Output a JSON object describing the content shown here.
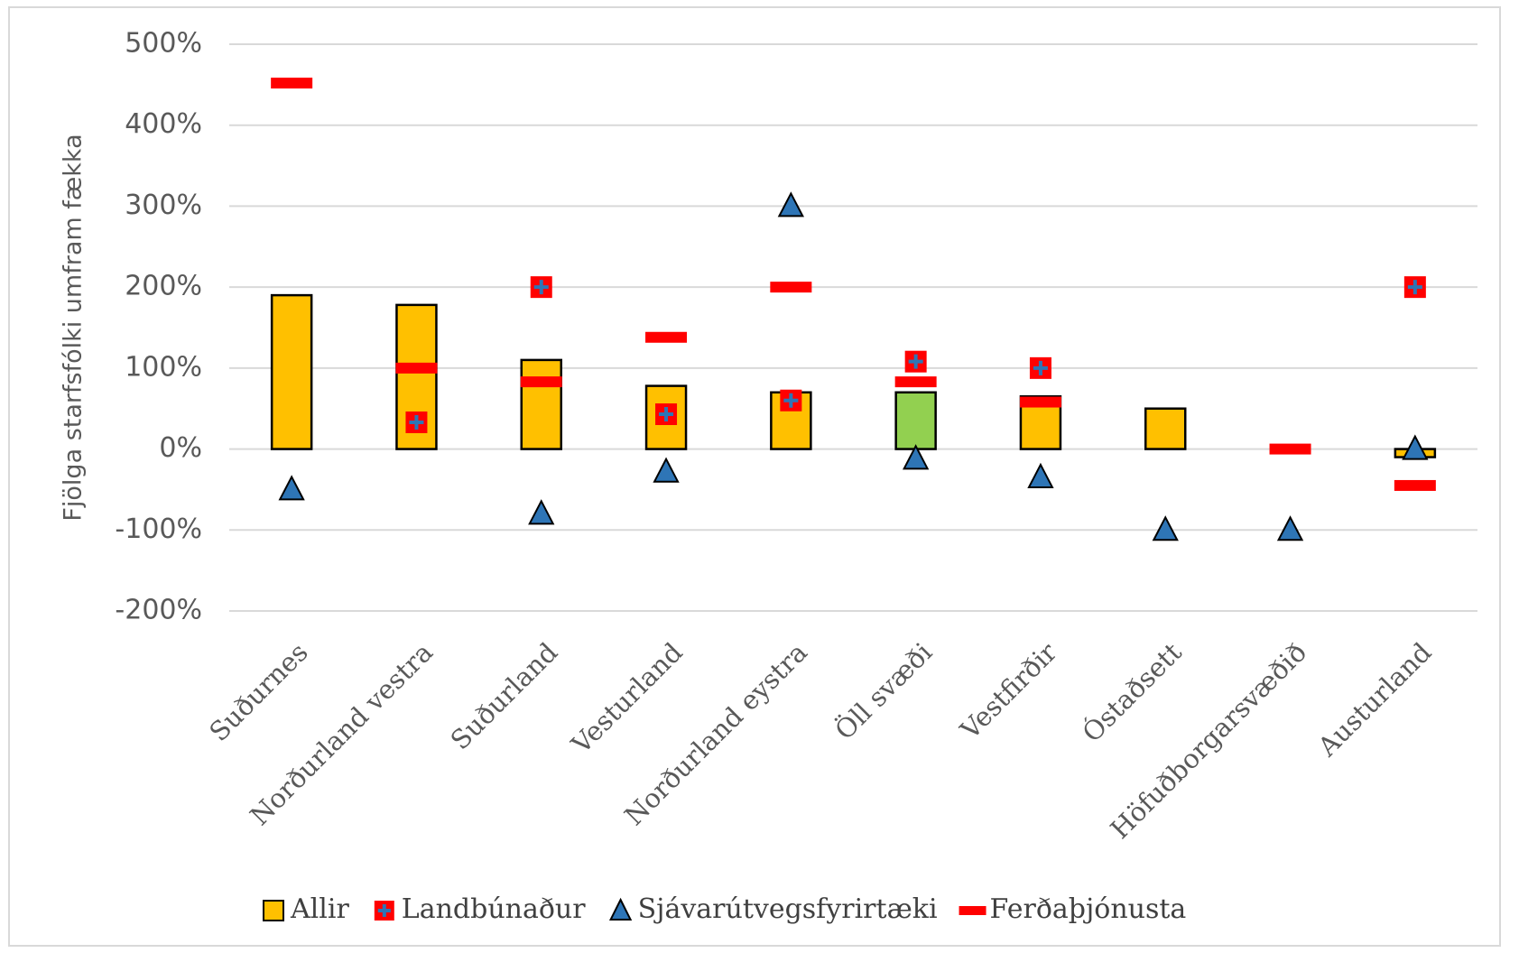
{
  "chart_data": {
    "type": "combo",
    "y_label": "Fjölga starfsfólki umfram fækka",
    "categories": [
      "Suðurnes",
      "Norðurland vestra",
      "Suðurland",
      "Vesturland",
      "Norðurland eystra",
      "Öll svæði",
      "Vestfirðir",
      "Óstaðsett",
      "Höfuðborgarsvæðið",
      "Austurland"
    ],
    "series": [
      {
        "name": "Allir",
        "mark": "bar",
        "color": "#ffc000",
        "colors": [
          "#ffc000",
          "#ffc000",
          "#ffc000",
          "#ffc000",
          "#ffc000",
          "#92d050",
          "#ffc000",
          "#ffc000",
          "#ffc000",
          "#ffc000"
        ],
        "values": [
          190,
          178,
          110,
          78,
          70,
          70,
          65,
          50,
          null,
          -10
        ]
      },
      {
        "name": "Landbúnaður",
        "mark": "cross",
        "color": "#ff0000",
        "values": [
          null,
          33,
          200,
          43,
          60,
          108,
          100,
          null,
          null,
          200
        ]
      },
      {
        "name": "Sjávarútvegsfyrirtæki",
        "mark": "triangle",
        "color": "#2e75b6",
        "values": [
          -50,
          null,
          -80,
          -28,
          300,
          -12,
          -35,
          -100,
          -100,
          0
        ]
      },
      {
        "name": "Ferðaþjónusta",
        "mark": "dash",
        "color": "#ff0000",
        "values": [
          452,
          100,
          83,
          138,
          200,
          83,
          58,
          null,
          0,
          -45
        ]
      }
    ],
    "ylim": [
      -200,
      500
    ],
    "yticks": [
      {
        "value": -200,
        "label": "-200%"
      },
      {
        "value": -100,
        "label": "-100%"
      },
      {
        "value": 0,
        "label": "0%"
      },
      {
        "value": 100,
        "label": "100%"
      },
      {
        "value": 200,
        "label": "200%"
      },
      {
        "value": 300,
        "label": "300%"
      },
      {
        "value": 400,
        "label": "400%"
      },
      {
        "value": 500,
        "label": "500%"
      }
    ],
    "grid": true
  }
}
